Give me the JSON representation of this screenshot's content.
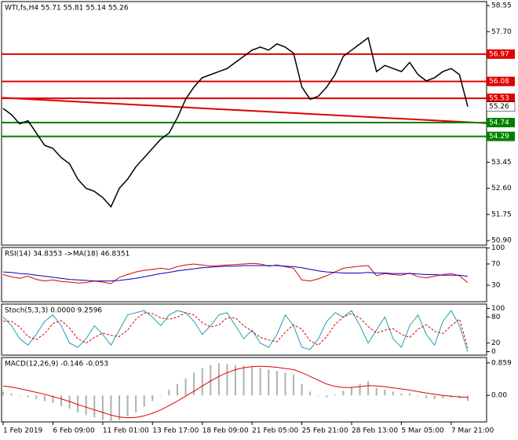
{
  "chart_data": [
    {
      "type": "line",
      "title": "WTI,fs,H4  55.71 55.81 55.14 55.26",
      "categories": [
        "1 Feb 2019",
        null,
        null,
        null,
        null,
        null,
        "6 Feb 09:00",
        null,
        null,
        null,
        null,
        null,
        "11 Feb 01:00",
        null,
        null,
        null,
        null,
        null,
        "13 Feb 17:00",
        null,
        null,
        null,
        null,
        null,
        "18 Feb 09:00",
        null,
        null,
        null,
        null,
        null,
        "21 Feb 05:00",
        null,
        null,
        null,
        null,
        null,
        "25 Feb 21:00",
        null,
        null,
        null,
        null,
        null,
        "28 Feb 13:00",
        null,
        null,
        null,
        null,
        null,
        "5 Mar 05:00",
        null,
        null,
        null,
        null,
        null,
        "7 Mar 21:00",
        null,
        null
      ],
      "series": [
        {
          "color": "#000000",
          "values": [
            55.2,
            55.0,
            54.7,
            54.8,
            54.4,
            54.0,
            53.9,
            53.6,
            53.4,
            52.9,
            52.6,
            52.5,
            52.3,
            52.0,
            52.6,
            52.9,
            53.3,
            53.6,
            53.9,
            54.2,
            54.4,
            54.9,
            55.5,
            55.9,
            56.2,
            56.3,
            56.4,
            56.5,
            56.7,
            56.9,
            57.1,
            57.2,
            57.1,
            57.3,
            57.2,
            57.0,
            55.9,
            55.5,
            55.6,
            55.9,
            56.3,
            56.9,
            57.1,
            57.3,
            57.5,
            56.4,
            56.6,
            56.5,
            56.4,
            56.7,
            56.3,
            56.1,
            56.2,
            56.4,
            56.5,
            56.3,
            55.26
          ]
        }
      ],
      "trendline": {
        "start": 55.55,
        "end": 54.72,
        "color": "#e00000"
      },
      "levels": [
        {
          "value": 56.97,
          "color": "#e00000"
        },
        {
          "value": 56.08,
          "color": "#e00000"
        },
        {
          "value": 55.53,
          "color": "#e00000"
        },
        {
          "value": 54.74,
          "color": "#008000"
        },
        {
          "value": 54.29,
          "color": "#008000"
        }
      ],
      "last_price": 55.26,
      "ylim": [
        50.75,
        58.68
      ],
      "yticks": [
        58.55,
        {
          "value": 57.7,
          "label": "57.70"
        },
        53.45,
        {
          "value": 52.6,
          "label": "52.60"
        },
        51.75,
        {
          "value": 50.9,
          "label": "50.90"
        }
      ]
    },
    {
      "type": "line",
      "title": "RSI(14) 34.8353 ->MA(18) 46.8351",
      "series": [
        {
          "color": "#e00000",
          "values": [
            50,
            46,
            43,
            47,
            41,
            38,
            40,
            37,
            36,
            34,
            35,
            38,
            36,
            33,
            45,
            50,
            55,
            58,
            60,
            62,
            60,
            65,
            68,
            70,
            68,
            66,
            67,
            68,
            69,
            70,
            71,
            70,
            66,
            68,
            65,
            62,
            40,
            38,
            42,
            48,
            55,
            62,
            64,
            66,
            67,
            48,
            52,
            50,
            49,
            53,
            46,
            44,
            47,
            50,
            52,
            48,
            34.8353
          ]
        },
        {
          "color": "#0000c0",
          "values": [
            55,
            54,
            52,
            51,
            49,
            47,
            45,
            43,
            41,
            40,
            39,
            38,
            38,
            38,
            39,
            41,
            43,
            46,
            49,
            52,
            54,
            57,
            59,
            61,
            63,
            64,
            65,
            66,
            66,
            67,
            67,
            67,
            67,
            67,
            66,
            65,
            63,
            60,
            57,
            55,
            54,
            53,
            53,
            53,
            54,
            53,
            53,
            52,
            52,
            52,
            51,
            50,
            50,
            49,
            49,
            49,
            46.8351
          ]
        }
      ],
      "ylim": [
        -1,
        101
      ],
      "yticks": [
        100,
        70,
        30
      ]
    },
    {
      "type": "line",
      "title": "Stoch(5,3,3) 0.0000 9.2596",
      "series": [
        {
          "color": "#20a0b0",
          "values": [
            80,
            60,
            30,
            15,
            40,
            70,
            85,
            60,
            20,
            10,
            30,
            60,
            40,
            15,
            50,
            85,
            90,
            95,
            80,
            60,
            85,
            95,
            90,
            70,
            40,
            60,
            85,
            90,
            60,
            30,
            50,
            20,
            10,
            40,
            85,
            60,
            10,
            5,
            30,
            70,
            90,
            80,
            95,
            60,
            20,
            50,
            80,
            30,
            10,
            60,
            85,
            40,
            15,
            70,
            95,
            60,
            0
          ]
        },
        {
          "color": "#e00000",
          "dashed": true,
          "values": [
            70,
            70,
            57,
            35,
            28,
            42,
            65,
            72,
            55,
            30,
            20,
            33,
            43,
            38,
            35,
            50,
            75,
            90,
            88,
            78,
            75,
            80,
            90,
            85,
            67,
            57,
            62,
            78,
            78,
            60,
            47,
            33,
            27,
            23,
            45,
            62,
            52,
            25,
            15,
            35,
            63,
            80,
            88,
            78,
            58,
            43,
            50,
            53,
            40,
            33,
            52,
            62,
            47,
            42,
            60,
            75,
            9.2596
          ]
        }
      ],
      "ylim": [
        -8,
        110
      ],
      "yticks": [
        100,
        80,
        20,
        0
      ]
    },
    {
      "type": "macd",
      "title": "MACD(12,26,9) -0.146 -0.053",
      "series": [
        {
          "color": "#b0b0b0",
          "style": "bar",
          "values": [
            0.1,
            0.05,
            0.0,
            -0.05,
            -0.1,
            -0.15,
            -0.2,
            -0.28,
            -0.35,
            -0.45,
            -0.52,
            -0.58,
            -0.65,
            -0.7,
            -0.65,
            -0.55,
            -0.45,
            -0.3,
            -0.15,
            0.0,
            0.15,
            0.3,
            0.45,
            0.6,
            0.72,
            0.8,
            0.85,
            0.83,
            0.8,
            0.78,
            0.75,
            0.72,
            0.68,
            0.65,
            0.6,
            0.55,
            0.3,
            0.1,
            0.0,
            -0.05,
            0.02,
            0.12,
            0.22,
            0.3,
            0.38,
            0.2,
            0.15,
            0.1,
            0.05,
            0.05,
            -0.02,
            -0.08,
            -0.1,
            -0.08,
            -0.05,
            -0.08,
            -0.146
          ]
        },
        {
          "color": "#e00000",
          "style": "line",
          "values": [
            0.25,
            0.22,
            0.18,
            0.13,
            0.08,
            0.03,
            -0.03,
            -0.09,
            -0.16,
            -0.24,
            -0.31,
            -0.38,
            -0.45,
            -0.52,
            -0.57,
            -0.59,
            -0.58,
            -0.54,
            -0.47,
            -0.38,
            -0.27,
            -0.15,
            -0.02,
            0.11,
            0.25,
            0.38,
            0.5,
            0.6,
            0.68,
            0.73,
            0.76,
            0.77,
            0.76,
            0.74,
            0.71,
            0.68,
            0.6,
            0.5,
            0.4,
            0.3,
            0.24,
            0.21,
            0.21,
            0.23,
            0.26,
            0.25,
            0.23,
            0.2,
            0.17,
            0.14,
            0.1,
            0.06,
            0.03,
            0.0,
            -0.02,
            -0.04,
            -0.053
          ]
        }
      ],
      "ylim": [
        -0.7,
        1.0
      ],
      "yticks": [
        0.859,
        {
          "value": 0,
          "label": "0.00"
        }
      ]
    }
  ]
}
